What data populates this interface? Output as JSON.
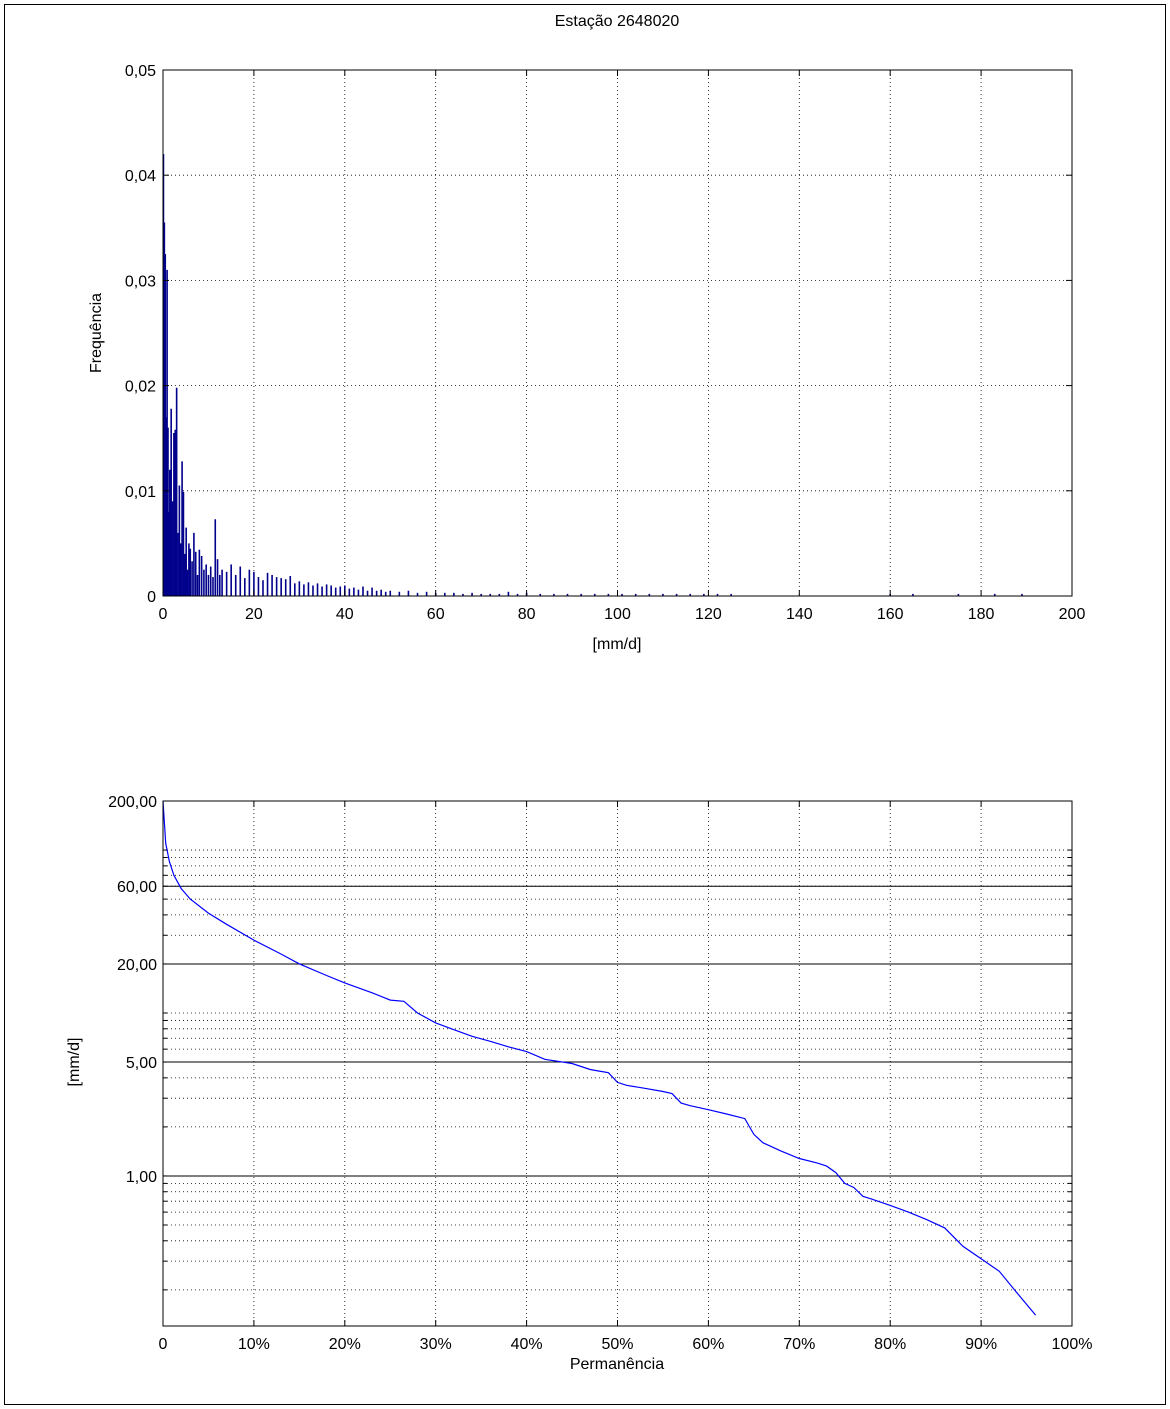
{
  "chart_data": [
    {
      "type": "bar",
      "title": "Estação 2648020",
      "xlabel": "[mm/d]",
      "ylabel": "Frequência",
      "xlim": [
        0,
        200
      ],
      "ylim": [
        0,
        0.05
      ],
      "xticks": [
        0,
        20,
        40,
        60,
        80,
        100,
        120,
        140,
        160,
        180,
        200
      ],
      "xtick_labels": [
        "0",
        "20",
        "40",
        "60",
        "80",
        "100",
        "120",
        "140",
        "160",
        "180",
        "200"
      ],
      "yticks": [
        0,
        0.01,
        0.02,
        0.03,
        0.04,
        0.05
      ],
      "ytick_labels": [
        "0",
        "0,01",
        "0,02",
        "0,03",
        "0,04",
        "0,05"
      ],
      "grid": true,
      "bar_color": "#00008b",
      "x": [
        0.1,
        0.3,
        0.5,
        0.7,
        0.9,
        1.1,
        1.3,
        1.5,
        1.8,
        2.1,
        2.4,
        2.7,
        3.0,
        3.3,
        3.6,
        3.9,
        4.2,
        4.5,
        4.8,
        5.1,
        5.4,
        5.7,
        6.0,
        6.4,
        6.8,
        7.2,
        7.6,
        8.0,
        8.5,
        9.0,
        9.5,
        10.0,
        10.5,
        11.0,
        11.5,
        12.0,
        12.5,
        13.0,
        14.0,
        15.0,
        16.0,
        17.0,
        18.0,
        19.0,
        20.0,
        21.0,
        22.0,
        23.0,
        24.0,
        25.0,
        26.0,
        27.0,
        28.0,
        29.0,
        30.0,
        31.0,
        32.0,
        33.0,
        34.0,
        35.0,
        36.0,
        37.0,
        38.0,
        39.0,
        40.0,
        41.0,
        42.0,
        43.0,
        44.0,
        45.0,
        46.0,
        47.0,
        48.0,
        49.0,
        50.0,
        52.0,
        54.0,
        56.0,
        58.0,
        60.0,
        62.0,
        64.0,
        66.0,
        68.0,
        70.0,
        72.0,
        74.0,
        76.0,
        78.0,
        80.0,
        83.0,
        86.0,
        89.0,
        92.0,
        95.0,
        98.0,
        101.0,
        104.0,
        107.0,
        110.0,
        113.0,
        116.0,
        119.0,
        122.0,
        125.0,
        160.0,
        165.0,
        175.0,
        183.0,
        189.0
      ],
      "values": [
        0.042,
        0.0355,
        0.0325,
        0.017,
        0.031,
        0.016,
        0.008,
        0.012,
        0.0178,
        0.009,
        0.0155,
        0.0158,
        0.0198,
        0.006,
        0.0105,
        0.005,
        0.0128,
        0.0099,
        0.004,
        0.0065,
        0.0025,
        0.005,
        0.0045,
        0.0033,
        0.006,
        0.0042,
        0.002,
        0.0044,
        0.0038,
        0.0025,
        0.003,
        0.002,
        0.0028,
        0.0018,
        0.0073,
        0.0035,
        0.002,
        0.0025,
        0.0023,
        0.003,
        0.002,
        0.0028,
        0.0017,
        0.0025,
        0.0023,
        0.0018,
        0.0015,
        0.0022,
        0.002,
        0.0018,
        0.0017,
        0.0016,
        0.0019,
        0.0012,
        0.0014,
        0.0011,
        0.0013,
        0.001,
        0.0012,
        0.0009,
        0.0011,
        0.001,
        0.0008,
        0.0009,
        0.001,
        0.0007,
        0.0008,
        0.0006,
        0.0009,
        0.0005,
        0.0008,
        0.0005,
        0.0006,
        0.0004,
        0.0005,
        0.0004,
        0.0005,
        0.0003,
        0.0004,
        0.0003,
        0.0003,
        0.0003,
        0.0002,
        0.0003,
        0.0002,
        0.0002,
        0.0002,
        0.0004,
        0.0002,
        0.0003,
        0.0002,
        0.0002,
        0.0002,
        0.0002,
        0.0002,
        0.0002,
        0.0002,
        0.0002,
        0.0002,
        0.0002,
        0.0002,
        0.0002,
        0.0002,
        0.0002,
        0.0002,
        0.0002,
        0.0002,
        0.0002,
        0.0002,
        0.0002
      ]
    },
    {
      "type": "line",
      "title": "",
      "xlabel": "Permanência",
      "ylabel": "[mm/d]",
      "xlim": [
        0,
        100
      ],
      "ylim": [
        0.12,
        200
      ],
      "yscale": "log",
      "xticks": [
        0,
        10,
        20,
        30,
        40,
        50,
        60,
        70,
        80,
        90,
        100
      ],
      "xtick_labels": [
        "0",
        "10%",
        "20%",
        "30%",
        "40%",
        "50%",
        "60%",
        "70%",
        "80%",
        "90%",
        "100%"
      ],
      "ytick_values": [
        200,
        60,
        20,
        5,
        1
      ],
      "ytick_labels": [
        "200,00",
        "60,00",
        "20,00",
        "5,00",
        "1,00"
      ],
      "grid": true,
      "line_color": "#0000ff",
      "x": [
        0,
        0.3,
        0.7,
        1.2,
        2,
        3,
        5,
        7,
        10,
        13,
        15,
        18,
        20,
        23,
        25,
        26.5,
        28,
        30,
        32,
        34,
        36,
        38,
        40,
        42,
        45,
        47,
        48,
        49,
        50,
        51,
        53,
        55,
        56,
        57,
        58,
        60,
        62,
        64,
        65,
        66,
        68,
        70,
        72,
        73,
        74,
        75,
        76,
        77,
        78,
        80,
        82,
        84,
        86,
        88,
        90,
        92,
        94,
        96
      ],
      "y": [
        200,
        110,
        85,
        70,
        58,
        50,
        41,
        35,
        28,
        23,
        20,
        17,
        15.3,
        13.3,
        12,
        11.8,
        10,
        8.7,
        7.9,
        7.2,
        6.7,
        6.2,
        5.8,
        5.2,
        4.9,
        4.5,
        4.4,
        4.3,
        3.75,
        3.6,
        3.45,
        3.3,
        3.2,
        2.8,
        2.7,
        2.55,
        2.4,
        2.25,
        1.8,
        1.6,
        1.42,
        1.28,
        1.2,
        1.15,
        1.05,
        0.9,
        0.85,
        0.75,
        0.72,
        0.66,
        0.6,
        0.54,
        0.48,
        0.37,
        0.31,
        0.26,
        0.19,
        0.14
      ]
    }
  ]
}
